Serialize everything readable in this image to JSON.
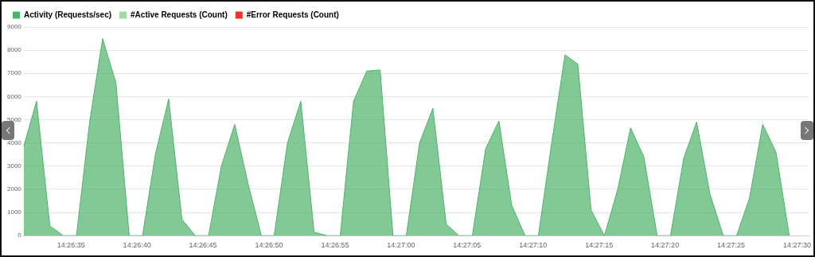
{
  "chart_data": {
    "type": "area",
    "legend": "top left",
    "grid": "y",
    "marker": "none",
    "x": [
      14.44206,
      14.44233,
      14.44261,
      14.44289,
      14.44317,
      14.44345,
      14.44372,
      14.444,
      14.44428,
      14.44456,
      14.44483,
      14.44511,
      14.44539,
      14.44567,
      14.44595,
      14.44622,
      14.4465,
      14.44678,
      14.44706,
      14.44733,
      14.44761,
      14.44789,
      14.44817,
      14.44845,
      14.44872,
      14.449,
      14.44928,
      14.44956,
      14.44983,
      14.45011,
      14.45039,
      14.45067,
      14.45095,
      14.45122,
      14.4515,
      14.45178,
      14.45206,
      14.45233,
      14.45261,
      14.45289,
      14.45317,
      14.45345,
      14.45372,
      14.454,
      14.45428,
      14.45456,
      14.45483,
      14.45511,
      14.45539,
      14.45567,
      14.45595,
      14.45622,
      14.4565,
      14.45678,
      14.45706,
      14.45733,
      14.45761,
      14.45789,
      14.45817
    ],
    "series": [
      {
        "name": "Activity (Requests/sec)",
        "color": "#4fb26a",
        "values": [
          3850,
          5800,
          420,
          0,
          0,
          4950,
          8500,
          6600,
          0,
          0,
          3500,
          5900,
          700,
          0,
          0,
          3000,
          4800,
          2250,
          0,
          0,
          4000,
          5800,
          150,
          0,
          0,
          5800,
          7100,
          7150,
          0,
          0,
          4000,
          5500,
          500,
          0,
          0,
          3750,
          4950,
          1300,
          0,
          0,
          4000,
          7800,
          7400,
          1100,
          0,
          2000,
          4650,
          3400,
          0,
          0,
          3350,
          4900,
          1800,
          0,
          0,
          1600,
          4800,
          3600,
          0
        ]
      },
      {
        "name": "#Active Requests (Count)",
        "color": "#a3d9a5",
        "values": [
          null,
          null,
          null,
          null,
          null,
          null,
          null,
          null,
          null,
          null,
          null,
          null,
          null,
          null,
          null,
          null,
          null,
          null,
          null,
          null,
          null,
          null,
          null,
          null,
          null,
          null,
          null,
          null,
          null,
          null,
          null,
          null,
          null,
          null,
          null,
          null,
          null,
          null,
          null,
          null,
          null,
          null,
          null,
          null,
          null,
          null,
          null,
          null,
          null,
          null,
          null,
          null,
          null,
          null,
          null,
          null,
          null,
          null,
          null
        ]
      },
      {
        "name": "#Error Requests (Count)",
        "color": "#e8352b",
        "values": [
          null,
          null,
          null,
          null,
          null,
          null,
          null,
          null,
          null,
          null,
          null,
          null,
          null,
          null,
          null,
          null,
          null,
          null,
          null,
          null,
          null,
          null,
          null,
          null,
          null,
          null,
          null,
          null,
          null,
          null,
          null,
          null,
          null,
          null,
          null,
          null,
          null,
          null,
          null,
          null,
          null,
          null,
          null,
          null,
          null,
          null,
          null,
          null,
          null,
          null,
          null,
          null,
          null,
          null,
          null,
          null,
          null,
          null,
          null
        ]
      }
    ],
    "xlim": [
      14.44206,
      14.45858
    ],
    "xticks": [
      {
        "value": 14.443056,
        "label": "14:26:35"
      },
      {
        "value": 14.444444,
        "label": "14:26:40"
      },
      {
        "value": 14.445833,
        "label": "14:26:45"
      },
      {
        "value": 14.447222,
        "label": "14:26:50"
      },
      {
        "value": 14.448611,
        "label": "14:26:55"
      },
      {
        "value": 14.45,
        "label": "14:27:00"
      },
      {
        "value": 14.451389,
        "label": "14:27:05"
      },
      {
        "value": 14.452778,
        "label": "14:27:10"
      },
      {
        "value": 14.454167,
        "label": "14:27:15"
      },
      {
        "value": 14.455556,
        "label": "14:27:20"
      },
      {
        "value": 14.456944,
        "label": "14:27:25"
      },
      {
        "value": 14.458333,
        "label": "14:27:30"
      }
    ],
    "ylim": [
      0,
      9000
    ],
    "yticks": [
      0,
      1000,
      2000,
      3000,
      4000,
      5000,
      6000,
      7000,
      8000,
      9000
    ]
  }
}
